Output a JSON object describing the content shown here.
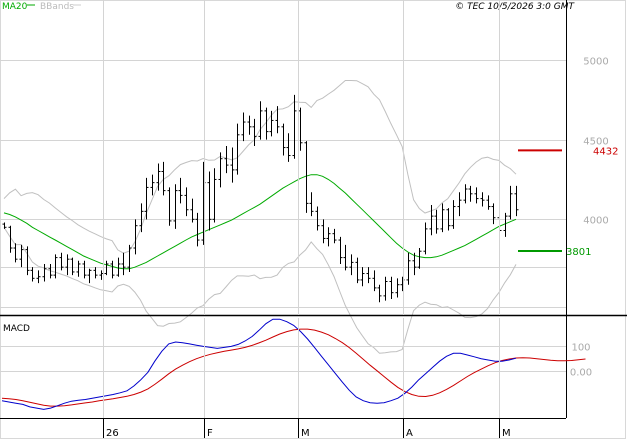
{
  "header": {
    "legend_items": [
      "MA20",
      "BBands"
    ],
    "copyright": "© TEC 10/5/2026 3:0 GMT"
  },
  "colors": {
    "price_bar": "#000000",
    "ma20": "#00aa00",
    "bbands": "#c0c0c0",
    "resistance": "#cc0000",
    "support": "#009900",
    "macd_line": "#0000cc",
    "signal_line": "#cc0000"
  },
  "chart_data": [
    {
      "type": "ohlc",
      "title": "",
      "x_tick_labels": [
        "26",
        "F",
        "M",
        "A",
        "M"
      ],
      "y_ticks": [
        5000,
        4500,
        4000
      ],
      "y_tick_labels": [
        "5000",
        "4500",
        "4000"
      ],
      "ylim": [
        3400,
        5300
      ],
      "grid": true,
      "series_names": [
        "MA20",
        "BBands"
      ],
      "ohlc": [
        [
          3970,
          3980,
          3940,
          3950
        ],
        [
          3950,
          3960,
          3790,
          3820
        ],
        [
          3820,
          3850,
          3730,
          3750
        ],
        [
          3750,
          3840,
          3700,
          3810
        ],
        [
          3810,
          3830,
          3650,
          3680
        ],
        [
          3680,
          3700,
          3610,
          3630
        ],
        [
          3630,
          3680,
          3600,
          3640
        ],
        [
          3640,
          3720,
          3610,
          3690
        ],
        [
          3690,
          3720,
          3630,
          3650
        ],
        [
          3650,
          3780,
          3630,
          3760
        ],
        [
          3760,
          3790,
          3680,
          3700
        ],
        [
          3700,
          3780,
          3650,
          3750
        ],
        [
          3750,
          3760,
          3650,
          3670
        ],
        [
          3670,
          3740,
          3640,
          3720
        ],
        [
          3720,
          3740,
          3630,
          3650
        ],
        [
          3650,
          3690,
          3600,
          3680
        ],
        [
          3680,
          3700,
          3630,
          3650
        ],
        [
          3650,
          3680,
          3620,
          3660
        ],
        [
          3660,
          3740,
          3650,
          3720
        ],
        [
          3720,
          3740,
          3630,
          3650
        ],
        [
          3650,
          3760,
          3640,
          3720
        ],
        [
          3720,
          3790,
          3650,
          3700
        ],
        [
          3700,
          3840,
          3670,
          3820
        ],
        [
          3820,
          4000,
          3780,
          3960
        ],
        [
          3960,
          4100,
          3920,
          4050
        ],
        [
          4050,
          4260,
          4000,
          4200
        ],
        [
          4200,
          4280,
          4150,
          4230
        ],
        [
          4230,
          4350,
          4180,
          4300
        ],
        [
          4300,
          4360,
          4150,
          4180
        ],
        [
          4180,
          4200,
          3960,
          3990
        ],
        [
          3990,
          4220,
          3940,
          4180
        ],
        [
          4180,
          4260,
          4100,
          4150
        ],
        [
          4150,
          4200,
          4020,
          4060
        ],
        [
          4060,
          4130,
          3980,
          4000
        ],
        [
          4000,
          4040,
          3830,
          3870
        ],
        [
          3870,
          4360,
          3840,
          4230
        ],
        [
          4230,
          4300,
          3930,
          4000
        ],
        [
          4000,
          4320,
          3980,
          4250
        ],
        [
          4250,
          4420,
          4200,
          4380
        ],
        [
          4380,
          4460,
          4290,
          4340
        ],
        [
          4340,
          4450,
          4230,
          4310
        ],
        [
          4310,
          4600,
          4280,
          4530
        ],
        [
          4530,
          4670,
          4490,
          4610
        ],
        [
          4610,
          4650,
          4530,
          4580
        ],
        [
          4580,
          4630,
          4460,
          4520
        ],
        [
          4520,
          4740,
          4500,
          4680
        ],
        [
          4680,
          4700,
          4500,
          4550
        ],
        [
          4550,
          4680,
          4520,
          4620
        ],
        [
          4620,
          4710,
          4540,
          4580
        ],
        [
          4580,
          4600,
          4400,
          4450
        ],
        [
          4450,
          4540,
          4360,
          4400
        ],
        [
          4400,
          4780,
          4380,
          4680
        ],
        [
          4680,
          4700,
          4430,
          4480
        ],
        [
          4480,
          4490,
          4040,
          4100
        ],
        [
          4100,
          4170,
          4020,
          4050
        ],
        [
          4050,
          4080,
          3930,
          3960
        ],
        [
          3960,
          4000,
          3850,
          3880
        ],
        [
          3880,
          3950,
          3830,
          3910
        ],
        [
          3910,
          3940,
          3850,
          3870
        ],
        [
          3870,
          3890,
          3720,
          3760
        ],
        [
          3760,
          3840,
          3680,
          3700
        ],
        [
          3700,
          3780,
          3650,
          3730
        ],
        [
          3730,
          3760,
          3600,
          3620
        ],
        [
          3620,
          3700,
          3580,
          3660
        ],
        [
          3660,
          3700,
          3600,
          3630
        ],
        [
          3630,
          3680,
          3550,
          3570
        ],
        [
          3570,
          3590,
          3480,
          3520
        ],
        [
          3520,
          3640,
          3490,
          3610
        ],
        [
          3610,
          3640,
          3500,
          3540
        ],
        [
          3540,
          3630,
          3510,
          3590
        ],
        [
          3590,
          3640,
          3550,
          3620
        ],
        [
          3620,
          3790,
          3590,
          3740
        ],
        [
          3740,
          3790,
          3650,
          3700
        ],
        [
          3700,
          3820,
          3690,
          3800
        ],
        [
          3800,
          3980,
          3780,
          3940
        ],
        [
          3940,
          4090,
          3900,
          4020
        ],
        [
          4020,
          4060,
          3910,
          3940
        ],
        [
          3940,
          4100,
          3920,
          4060
        ],
        [
          4060,
          4070,
          3930,
          3960
        ],
        [
          3960,
          4120,
          3940,
          4080
        ],
        [
          4080,
          4170,
          4020,
          4120
        ],
        [
          4120,
          4220,
          4100,
          4190
        ],
        [
          4190,
          4210,
          4110,
          4160
        ],
        [
          4160,
          4200,
          4100,
          4130
        ],
        [
          4130,
          4170,
          4080,
          4120
        ],
        [
          4120,
          4150,
          4060,
          4080
        ],
        [
          4080,
          4100,
          3970,
          4010
        ],
        [
          4010,
          4060,
          3880,
          3930
        ],
        [
          3930,
          4040,
          3890,
          4020
        ],
        [
          4020,
          4210,
          4000,
          4160
        ],
        [
          4160,
          4210,
          4020,
          4060
        ]
      ],
      "ma20": [
        4040,
        4030,
        4015,
        3995,
        3975,
        3950,
        3930,
        3910,
        3890,
        3870,
        3850,
        3830,
        3810,
        3790,
        3770,
        3755,
        3740,
        3725,
        3715,
        3705,
        3695,
        3690,
        3690,
        3700,
        3715,
        3730,
        3750,
        3770,
        3790,
        3810,
        3830,
        3850,
        3870,
        3890,
        3905,
        3920,
        3935,
        3950,
        3965,
        3980,
        3995,
        4015,
        4035,
        4055,
        4075,
        4095,
        4120,
        4145,
        4170,
        4195,
        4215,
        4235,
        4255,
        4270,
        4280,
        4280,
        4270,
        4250,
        4225,
        4195,
        4165,
        4130,
        4095,
        4060,
        4025,
        3990,
        3955,
        3920,
        3885,
        3850,
        3820,
        3795,
        3775,
        3765,
        3760,
        3760,
        3765,
        3775,
        3790,
        3805,
        3820,
        3835,
        3855,
        3875,
        3895,
        3915,
        3935,
        3955,
        3970,
        3985,
        4000
      ]
    },
    {
      "type": "line",
      "title": "MACD",
      "x_tick_labels": [
        "26",
        "F",
        "M",
        "A",
        "M"
      ],
      "y_ticks": [
        100,
        0
      ],
      "y_tick_labels": [
        "100",
        "0.00"
      ],
      "ylim": [
        -190,
        215
      ],
      "grid": true,
      "series": [
        {
          "name": "",
          "values": [
            -120,
            -125,
            -130,
            -135,
            -145,
            -150,
            -155,
            -150,
            -140,
            -130,
            -122,
            -118,
            -115,
            -110,
            -105,
            -100,
            -95,
            -88,
            -80,
            -60,
            -35,
            -5,
            40,
            80,
            110,
            118,
            115,
            110,
            105,
            100,
            96,
            92,
            96,
            100,
            108,
            122,
            140,
            165,
            192,
            210,
            210,
            200,
            185,
            160,
            130,
            95,
            60,
            25,
            -10,
            -45,
            -78,
            -105,
            -120,
            -128,
            -130,
            -128,
            -120,
            -110,
            -90,
            -65,
            -35,
            -10,
            15,
            40,
            60,
            72,
            72,
            65,
            58,
            50,
            45,
            40,
            40,
            45,
            52
          ]
        },
        {
          "name": "",
          "values": [
            -110,
            -112,
            -115,
            -120,
            -126,
            -132,
            -138,
            -142,
            -142,
            -140,
            -137,
            -133,
            -129,
            -125,
            -120,
            -116,
            -112,
            -107,
            -102,
            -95,
            -85,
            -72,
            -54,
            -33,
            -11,
            8,
            24,
            38,
            50,
            60,
            68,
            74,
            80,
            85,
            90,
            96,
            104,
            114,
            125,
            138,
            150,
            160,
            167,
            170,
            170,
            166,
            158,
            147,
            132,
            115,
            95,
            72,
            48,
            24,
            1,
            -22,
            -45,
            -66,
            -83,
            -95,
            -102,
            -103,
            -98,
            -88,
            -74,
            -58,
            -40,
            -22,
            -6,
            8,
            22,
            34,
            43,
            49,
            53,
            54,
            53,
            50,
            47,
            44,
            42,
            42,
            43,
            46,
            49
          ]
        }
      ]
    }
  ],
  "levels": {
    "resistance": {
      "value": 4432,
      "label": "4432"
    },
    "support": {
      "value": 3801,
      "label": "3801"
    }
  }
}
